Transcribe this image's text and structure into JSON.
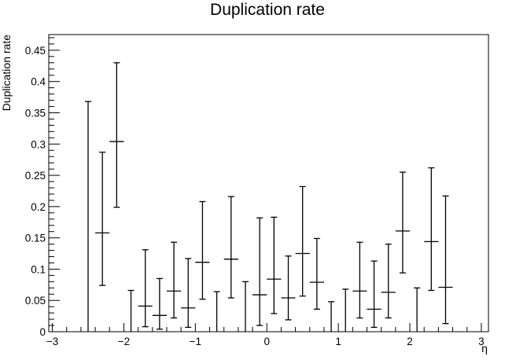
{
  "chart_data": {
    "type": "scatter",
    "title": "Duplication rate",
    "xlabel": "η",
    "ylabel": "Duplication rate",
    "xlim": [
      -3.05,
      3.1
    ],
    "ylim": [
      0,
      0.475
    ],
    "x_ticks": [
      -3,
      -2,
      -1,
      0,
      1,
      2,
      3
    ],
    "x_tick_labels": [
      "−3",
      "−2",
      "−1",
      "0",
      "1",
      "2",
      "3"
    ],
    "y_ticks": [
      0,
      0.05,
      0.1,
      0.15,
      0.2,
      0.25,
      0.3,
      0.35,
      0.4,
      0.45
    ],
    "y_tick_labels": [
      "0",
      "0.05",
      "0.1",
      "0.15",
      "0.2",
      "0.25",
      "0.3",
      "0.35",
      "0.4",
      "0.45"
    ],
    "grid": false,
    "legend": "none",
    "bin_half_width": 0.1,
    "series": [
      {
        "points": [
          {
            "x": -2.5,
            "y": 0.0,
            "ylo": 0.0,
            "yhi": 0.368
          },
          {
            "x": -2.3,
            "y": 0.158,
            "ylo": 0.074,
            "yhi": 0.287
          },
          {
            "x": -2.1,
            "y": 0.304,
            "ylo": 0.199,
            "yhi": 0.43
          },
          {
            "x": -1.9,
            "y": 0.0,
            "ylo": 0.0,
            "yhi": 0.066
          },
          {
            "x": -1.7,
            "y": 0.041,
            "ylo": 0.008,
            "yhi": 0.131
          },
          {
            "x": -1.5,
            "y": 0.026,
            "ylo": 0.004,
            "yhi": 0.085
          },
          {
            "x": -1.3,
            "y": 0.065,
            "ylo": 0.022,
            "yhi": 0.143
          },
          {
            "x": -1.1,
            "y": 0.038,
            "ylo": 0.007,
            "yhi": 0.117
          },
          {
            "x": -0.9,
            "y": 0.111,
            "ylo": 0.052,
            "yhi": 0.208
          },
          {
            "x": -0.7,
            "y": 0.0,
            "ylo": 0.0,
            "yhi": 0.064
          },
          {
            "x": -0.5,
            "y": 0.116,
            "ylo": 0.054,
            "yhi": 0.216
          },
          {
            "x": -0.3,
            "y": 0.0,
            "ylo": 0.0,
            "yhi": 0.08
          },
          {
            "x": -0.1,
            "y": 0.059,
            "ylo": 0.01,
            "yhi": 0.182
          },
          {
            "x": 0.1,
            "y": 0.084,
            "ylo": 0.029,
            "yhi": 0.183
          },
          {
            "x": 0.3,
            "y": 0.054,
            "ylo": 0.019,
            "yhi": 0.121
          },
          {
            "x": 0.5,
            "y": 0.125,
            "ylo": 0.057,
            "yhi": 0.232
          },
          {
            "x": 0.7,
            "y": 0.079,
            "ylo": 0.036,
            "yhi": 0.149
          },
          {
            "x": 0.9,
            "y": 0.0,
            "ylo": 0.0,
            "yhi": 0.048
          },
          {
            "x": 1.1,
            "y": 0.0,
            "ylo": 0.0,
            "yhi": 0.068
          },
          {
            "x": 1.3,
            "y": 0.065,
            "ylo": 0.022,
            "yhi": 0.143
          },
          {
            "x": 1.5,
            "y": 0.036,
            "ylo": 0.007,
            "yhi": 0.113
          },
          {
            "x": 1.7,
            "y": 0.063,
            "ylo": 0.022,
            "yhi": 0.14
          },
          {
            "x": 1.9,
            "y": 0.161,
            "ylo": 0.094,
            "yhi": 0.255
          },
          {
            "x": 2.1,
            "y": 0.0,
            "ylo": 0.0,
            "yhi": 0.07
          },
          {
            "x": 2.3,
            "y": 0.144,
            "ylo": 0.066,
            "yhi": 0.262
          },
          {
            "x": 2.5,
            "y": 0.071,
            "ylo": 0.013,
            "yhi": 0.217
          }
        ]
      }
    ]
  }
}
